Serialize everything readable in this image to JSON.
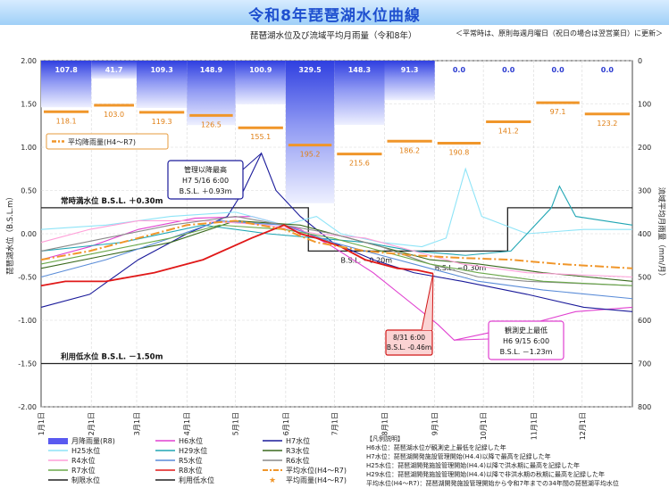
{
  "header": {
    "title": "令和8年琵琶湖水位曲線",
    "subtitle": "琵琶湖水位及び流域平均月雨量（令和8年）",
    "note": "＜平常時は、原則毎週月曜日（祝日の場合は翌営業日）に更新＞"
  },
  "chart_data": {
    "type": "line",
    "ylabel": "琵琶湖水位（B.S.L.m）",
    "y2label": "流域平均月雨量（mm/月）",
    "ylim": [
      -2.0,
      2.0
    ],
    "y2lim": [
      0,
      800
    ],
    "y_ticks": [
      "2.00",
      "1.50",
      "1.00",
      "0.50",
      "0.00",
      "-0.50",
      "-1.00",
      "-1.50",
      "-2.00"
    ],
    "y2_ticks": [
      "0",
      "100",
      "200",
      "300",
      "400",
      "500",
      "600",
      "700",
      "800"
    ],
    "x_ticks": [
      "1月1日",
      "2月1日",
      "3月1日",
      "4月1日",
      "5月1日",
      "6月1日",
      "7月1日",
      "8月1日",
      "9月1日",
      "10月1日",
      "11月1日",
      "12月1日"
    ],
    "monthly_rain_R8": [
      107.8,
      41.7,
      109.3,
      148.9,
      100.9,
      329.5,
      148.3,
      91.3,
      0.0,
      0.0,
      0.0,
      0.0
    ],
    "monthly_rain_avg": [
      118.1,
      103.0,
      119.3,
      126.5,
      155.1,
      195.2,
      215.6,
      186.2,
      190.8,
      141.2,
      97.1,
      123.2
    ],
    "reference_lines": [
      {
        "label": "常時満水位 B.S.L. ＋0.30m",
        "value": 0.3
      },
      {
        "label": "利用低水位 B.S.L. －1.50m",
        "value": -1.5
      }
    ],
    "bsl_labels": [
      "B.S.L. −0.20m",
      "B.S.L. −0.30m"
    ],
    "annotations": {
      "max": [
        "管理以降最高",
        "H7 5/16 6:00",
        "B.S.L. ＋0.93m"
      ],
      "min": [
        "観測史上最低",
        "H6 9/15 6:00",
        "B.S.L. －1.23m"
      ],
      "r8": [
        "8/31  6:00",
        "B.S.L. -0.46m"
      ],
      "avg_rain": "平均降雨量(H4〜R7)"
    },
    "series": [
      {
        "name": "月降雨量(R8)",
        "color": "#7f7ff5"
      },
      {
        "name": "H6水位",
        "color": "#e040d0"
      },
      {
        "name": "H7水位",
        "color": "#1a1a9a"
      },
      {
        "name": "H25水位",
        "color": "#8ee4f7"
      },
      {
        "name": "H29水位",
        "color": "#20a6b4"
      },
      {
        "name": "R3水位",
        "color": "#3a6a1e"
      },
      {
        "name": "R4水位",
        "color": "#ff9ed8"
      },
      {
        "name": "R5水位",
        "color": "#5a8cd8"
      },
      {
        "name": "R6水位",
        "color": "#8a8a8a"
      },
      {
        "name": "R7水位",
        "color": "#6aa84a"
      },
      {
        "name": "R8水位",
        "color": "#e01818"
      },
      {
        "name": "平均水位(H4〜R7)",
        "color": "#f0962a"
      },
      {
        "name": "制限水位",
        "color": "#222222"
      },
      {
        "name": "利用低水位",
        "color": "#222222"
      },
      {
        "name": "平均雨量(H4〜R7)",
        "color": "#f0962a"
      }
    ]
  },
  "legend_notes": [
    "【凡例説明】",
    "H6水位：琵琶湖水位が観測史上最低を記録した年",
    "H7水位：琵琶湖開発施設管理開始(H4.4)以降で最高を記録した年",
    "H25水位：琵琶湖開発施設管理開始(H4.4)以降で洪水期に最高を記録した年",
    "H29水位：琵琶湖開発施設管理開始(H4.4)以降で非洪水期の秋期に最高を記録した年",
    "平均水位(H4〜R7)：琵琶湖開発施設管理開始から令和7年までの34年間の琵琶湖平均水位"
  ]
}
